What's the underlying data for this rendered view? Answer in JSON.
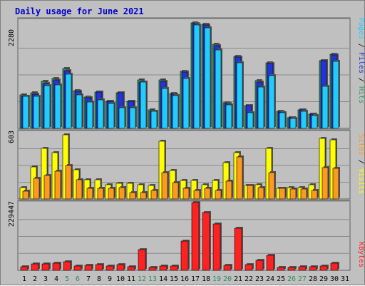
{
  "title": "Daily usage for June 2021",
  "colors": {
    "hits": "#339966",
    "files": "#2233dd",
    "pages": "#22ccff",
    "visits": "#ffff00",
    "sites": "#ff9922",
    "kbytes": "#ff2222",
    "weekday": "#000000",
    "weekend": "#2e8b57"
  },
  "panels": {
    "top": {
      "max_label": "2280",
      "legend": {
        "pages": "Pages",
        "files": "Files",
        "hits": "Hits",
        "sep": " / "
      }
    },
    "mid": {
      "max_label": "603",
      "legend": {
        "sites": "Sites",
        "visits": "Visits",
        "sep": " / "
      }
    },
    "bot": {
      "max_label": "229447",
      "legend": {
        "kbytes": "KBytes"
      }
    }
  },
  "chart_data": {
    "type": "bar",
    "title": "Daily usage for June 2021",
    "x": [
      "1",
      "2",
      "3",
      "4",
      "5",
      "6",
      "7",
      "8",
      "9",
      "10",
      "11",
      "12",
      "13",
      "14",
      "15",
      "16",
      "17",
      "18",
      "19",
      "20",
      "21",
      "22",
      "23",
      "24",
      "25",
      "26",
      "27",
      "28",
      "29",
      "30",
      "31"
    ],
    "weekend_days": [
      "5",
      "6",
      "12",
      "13",
      "19",
      "20",
      "26",
      "27"
    ],
    "panels": [
      {
        "name": "top",
        "ylim": [
          0,
          2280
        ],
        "series": [
          {
            "name": "Hits",
            "values": [
              712,
              760,
              1010,
              1060,
              1270,
              802,
              665,
              775,
              580,
              756,
              585,
              1038,
              388,
              1040,
              742,
              1220,
              2250,
              2220,
              1800,
              545,
              1530,
              480,
              1020,
              1400,
              365,
              235,
              400,
              302,
              1450,
              1580,
              0
            ]
          },
          {
            "name": "Files",
            "values": [
              690,
              730,
              960,
              1040,
              1230,
              790,
              650,
              770,
              570,
              755,
              570,
              990,
              370,
              1000,
              730,
              1200,
              2240,
              2200,
              1760,
              525,
              1520,
              490,
              995,
              1380,
              356,
              235,
              400,
              302,
              1440,
              1570,
              0
            ]
          },
          {
            "name": "Pages",
            "values": [
              680,
              690,
              910,
              930,
              1160,
              710,
              560,
              610,
              530,
              440,
              440,
              990,
              370,
              850,
              700,
              1070,
              2200,
              2150,
              1670,
              505,
              1400,
              340,
              880,
              1120,
              340,
              220,
              360,
              272,
              900,
              1430,
              0
            ]
          }
        ]
      },
      {
        "name": "mid",
        "ylim": [
          0,
          603
        ],
        "series": [
          {
            "name": "Visits",
            "values": [
              100,
              290,
              455,
              420,
              580,
              265,
              170,
              175,
              130,
              140,
              140,
              130,
              125,
              520,
              255,
              165,
              165,
              130,
              165,
              330,
              420,
              125,
              130,
              455,
              95,
              100,
              105,
              130,
              545,
              530,
              0
            ]
          },
          {
            "name": "Sites",
            "values": [
              70,
              185,
              210,
              250,
              300,
              175,
              95,
              95,
              95,
              100,
              60,
              60,
              80,
              235,
              145,
              95,
              75,
              95,
              75,
              160,
              380,
              120,
              105,
              240,
              95,
              90,
              90,
              75,
              285,
              275,
              0
            ]
          }
        ]
      },
      {
        "name": "bot",
        "ylim": [
          0,
          229447
        ],
        "series": [
          {
            "name": "KBytes",
            "values": [
              12000,
              22000,
              22000,
              24000,
              28000,
              15000,
              17000,
              19000,
              14000,
              19000,
              12000,
              69000,
              10000,
              14000,
              14000,
              100000,
              229000,
              195000,
              157000,
              18000,
              143000,
              20000,
              33000,
              50000,
              9000,
              10000,
              12000,
              11000,
              14000,
              24000,
              0
            ]
          }
        ]
      }
    ]
  }
}
